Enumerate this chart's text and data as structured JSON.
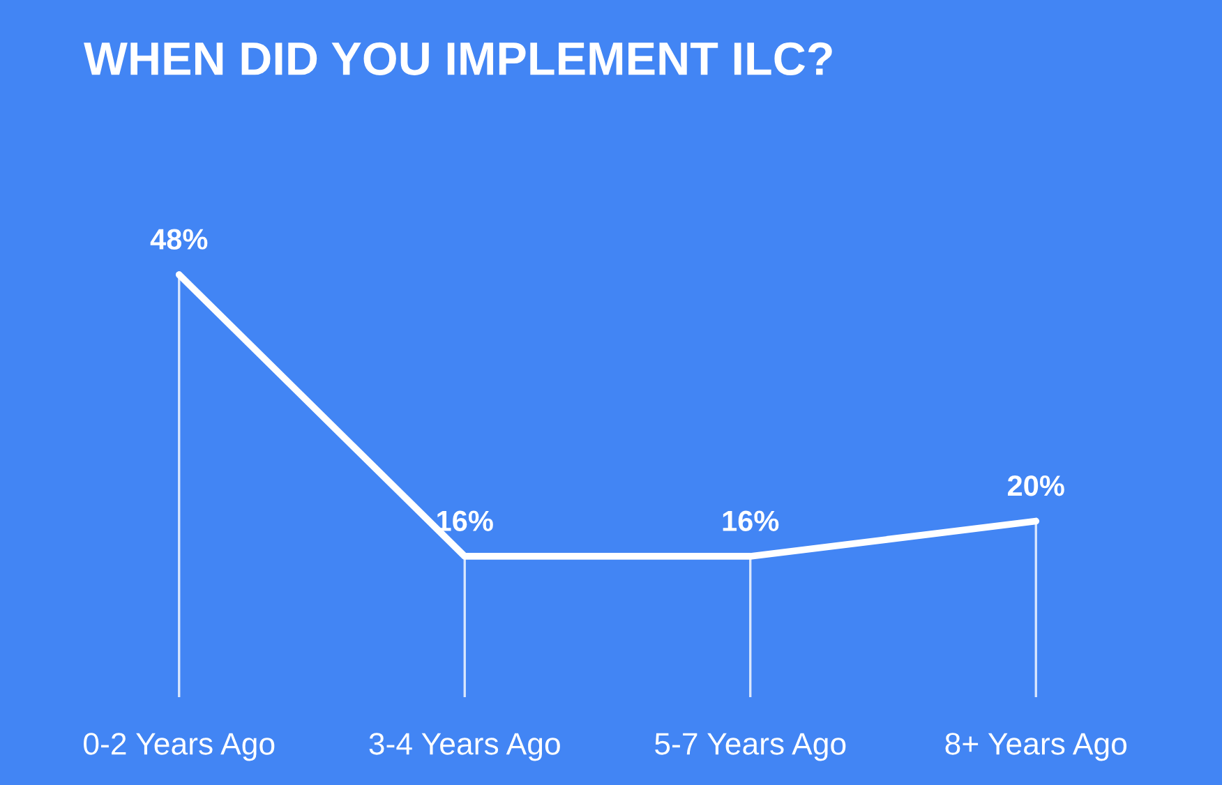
{
  "chart_data": {
    "type": "line",
    "title": "WHEN DID YOU IMPLEMENT ILC?",
    "categories": [
      "0-2 Years Ago",
      "3-4 Years Ago",
      "5-7 Years Ago",
      "8+ Years Ago"
    ],
    "series": [
      {
        "color": "#ffffff",
        "values": [
          48,
          16,
          16,
          20
        ],
        "value_labels": [
          "48%",
          "16%",
          "16%",
          "20%"
        ]
      }
    ],
    "grid": "x",
    "line_style": "solid"
  }
}
